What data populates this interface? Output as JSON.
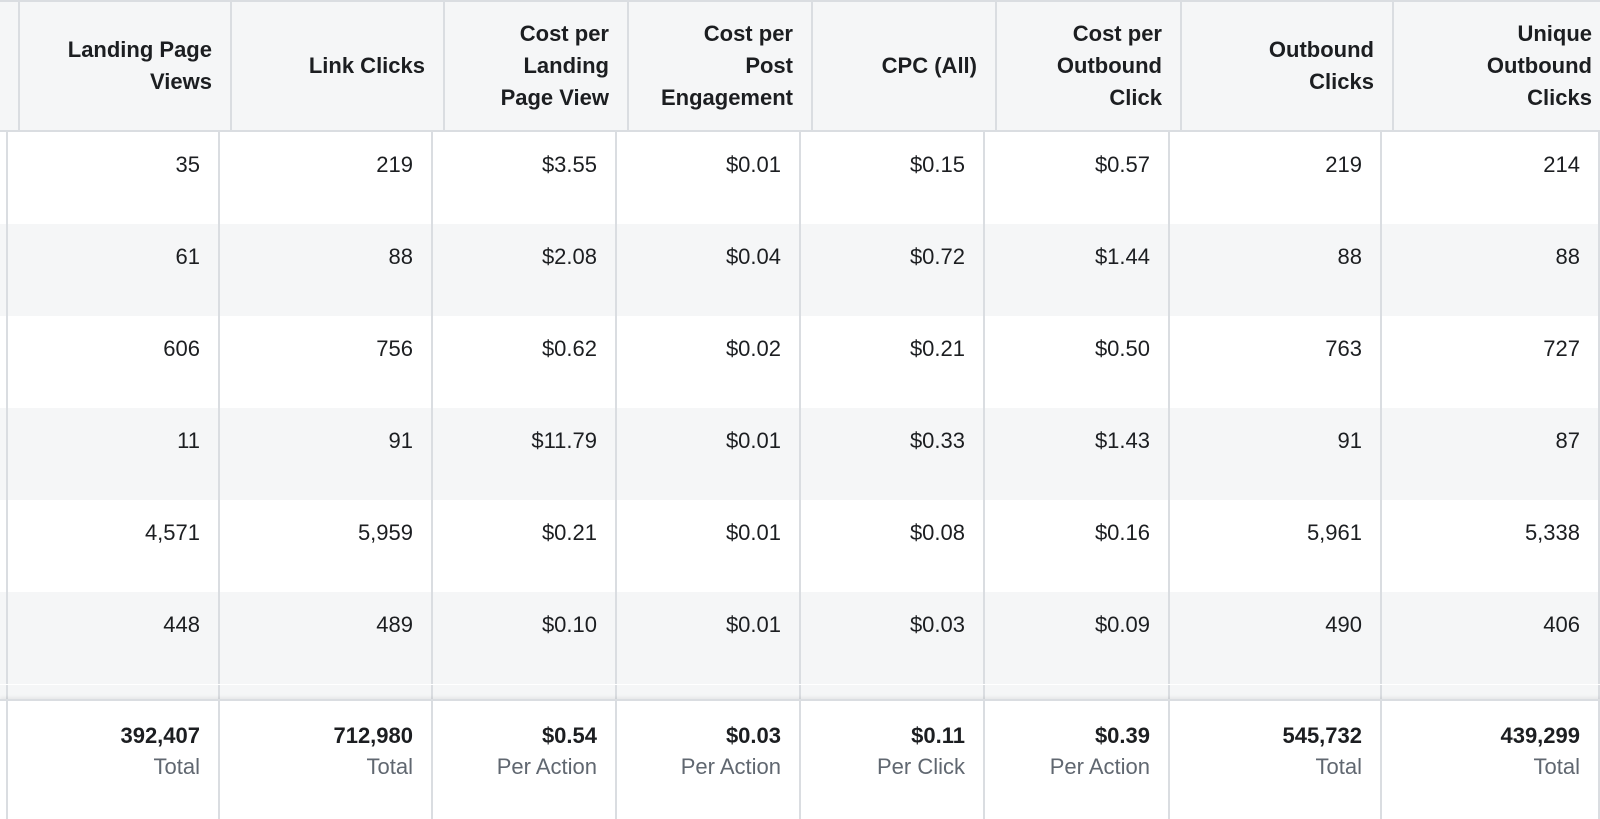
{
  "columns": [
    {
      "label": "Landing Page Views"
    },
    {
      "label": "Link Clicks"
    },
    {
      "label": "Cost per Landing Page View"
    },
    {
      "label": "Cost per Post Engagement"
    },
    {
      "label": "CPC (All)"
    },
    {
      "label": "Cost per Outbound Click"
    },
    {
      "label": "Outbound Clicks"
    },
    {
      "label": "Unique Outbound Clicks"
    }
  ],
  "header_lines": [
    [
      "Landing Page",
      "Views"
    ],
    [
      "Link Clicks"
    ],
    [
      "Cost per",
      "Landing",
      "Page View"
    ],
    [
      "Cost per",
      "Post",
      "Engagement"
    ],
    [
      "CPC (All)"
    ],
    [
      "Cost per",
      "Outbound",
      "Click"
    ],
    [
      "Outbound",
      "Clicks"
    ],
    [
      "Unique",
      "Outbound",
      "Clicks"
    ]
  ],
  "rows": [
    [
      "35",
      "219",
      "$3.55",
      "$0.01",
      "$0.15",
      "$0.57",
      "219",
      "214"
    ],
    [
      "61",
      "88",
      "$2.08",
      "$0.04",
      "$0.72",
      "$1.44",
      "88",
      "88"
    ],
    [
      "606",
      "756",
      "$0.62",
      "$0.02",
      "$0.21",
      "$0.50",
      "763",
      "727"
    ],
    [
      "11",
      "91",
      "$11.79",
      "$0.01",
      "$0.33",
      "$1.43",
      "91",
      "87"
    ],
    [
      "4,571",
      "5,959",
      "$0.21",
      "$0.01",
      "$0.08",
      "$0.16",
      "5,961",
      "5,338"
    ],
    [
      "448",
      "489",
      "$0.10",
      "$0.01",
      "$0.03",
      "$0.09",
      "490",
      "406"
    ]
  ],
  "summary": [
    {
      "value": "392,407",
      "label": "Total"
    },
    {
      "value": "712,980",
      "label": "Total"
    },
    {
      "value": "$0.54",
      "label": "Per Action"
    },
    {
      "value": "$0.03",
      "label": "Per Action"
    },
    {
      "value": "$0.11",
      "label": "Per Click"
    },
    {
      "value": "$0.39",
      "label": "Per Action"
    },
    {
      "value": "545,732",
      "label": "Total"
    },
    {
      "value": "439,299",
      "label": "Total"
    }
  ],
  "colors": {
    "header_bg": "#f5f6f7",
    "alt_row_bg": "#f5f6f7",
    "border": "#dadde1",
    "text": "#1c1e21",
    "muted": "#606770"
  }
}
